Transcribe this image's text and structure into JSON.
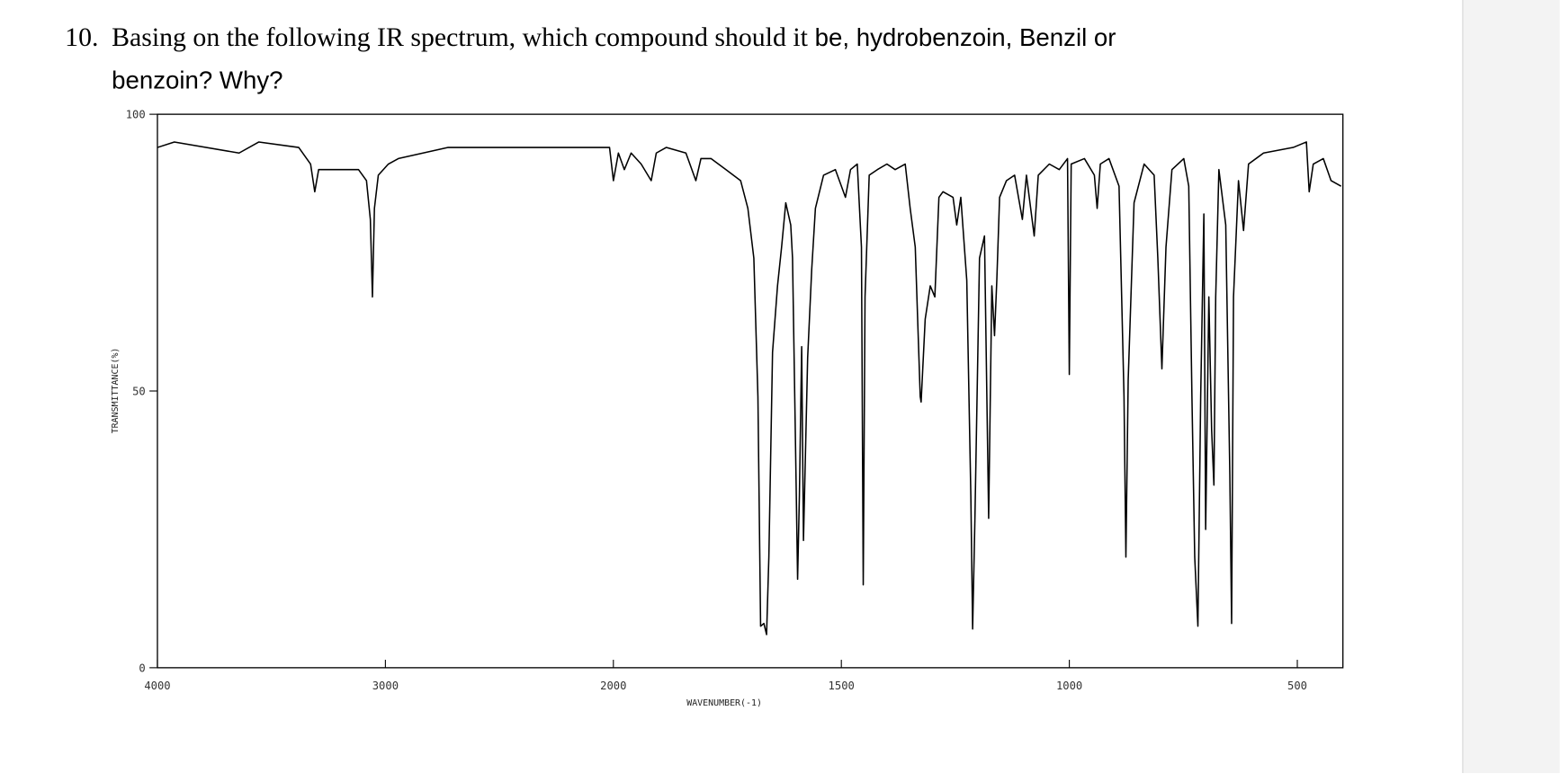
{
  "question": {
    "number": "10.",
    "text_serif": "Basing on the following IR spectrum, which compound should it",
    "text_sans": "be, hydrobenzoin, Benzil or",
    "text_line2": "benzoin? Why?"
  },
  "chart_data": {
    "type": "line",
    "xlabel": "WAVENUMBER(-1)",
    "ylabel": "TRANSMITTANCE(%)",
    "xlim": [
      4000,
      400
    ],
    "xticks": [
      4000,
      3000,
      2000,
      1500,
      1000,
      500
    ],
    "ylim": [
      0,
      100
    ],
    "yticks": [
      0,
      50,
      100
    ],
    "x": [
      4000,
      3926,
      3642,
      3555,
      3380,
      3328,
      3310,
      3293,
      3118,
      3083,
      3066,
      3057,
      3048,
      3031,
      2987,
      2943,
      2725,
      2507,
      2244,
      2070,
      2017,
      2000,
      1989,
      1976,
      1961,
      1939,
      1917,
      1906,
      1884,
      1841,
      1819,
      1808,
      1786,
      1753,
      1721,
      1705,
      1692,
      1683,
      1677,
      1670,
      1664,
      1659,
      1651,
      1640,
      1631,
      1622,
      1611,
      1607,
      1600,
      1596,
      1592,
      1587,
      1583,
      1574,
      1565,
      1557,
      1539,
      1513,
      1491,
      1480,
      1465,
      1456,
      1452,
      1448,
      1439,
      1421,
      1400,
      1382,
      1360,
      1349,
      1338,
      1327,
      1325,
      1316,
      1305,
      1295,
      1286,
      1277,
      1255,
      1247,
      1238,
      1225,
      1216,
      1212,
      1207,
      1197,
      1186,
      1177,
      1170,
      1164,
      1159,
      1153,
      1138,
      1120,
      1103,
      1094,
      1077,
      1068,
      1044,
      1022,
      1004,
      1000,
      996,
      967,
      945,
      939,
      932,
      913,
      891,
      880,
      876,
      871,
      858,
      836,
      814,
      806,
      797,
      788,
      775,
      749,
      738,
      731,
      725,
      718,
      712,
      705,
      701,
      694,
      688,
      683,
      679,
      672,
      657,
      648,
      644,
      640,
      629,
      618,
      607,
      574,
      509,
      480,
      474,
      465,
      443,
      426,
      404
    ],
    "series": [
      {
        "color": "#000000",
        "values": [
          94,
          95,
          93,
          95,
          94,
          91,
          86,
          90,
          90,
          88,
          81,
          67,
          83,
          89,
          91,
          92,
          94,
          94,
          94,
          94,
          94,
          88,
          93,
          90,
          93,
          91,
          88,
          93,
          94,
          93,
          88,
          92,
          92,
          90,
          88,
          83,
          74,
          49,
          7.5,
          8,
          6,
          20,
          57,
          69,
          76,
          84,
          80,
          74,
          38,
          16,
          31,
          58,
          23,
          56,
          72,
          83,
          89,
          90,
          85,
          90,
          91,
          76,
          15,
          67,
          89,
          90,
          91,
          90,
          91,
          83,
          76,
          49,
          48,
          63,
          69,
          67,
          85,
          86,
          85,
          80,
          85,
          70,
          31,
          7,
          27,
          74,
          78,
          27,
          69,
          60,
          70,
          85,
          88,
          89,
          81,
          89,
          78,
          89,
          91,
          90,
          92,
          53,
          91,
          92,
          89,
          83,
          91,
          92,
          87,
          49,
          20,
          52,
          84,
          91,
          89,
          74,
          54,
          76,
          90,
          92,
          87,
          49,
          20,
          7.5,
          49,
          82,
          25,
          67,
          43,
          33,
          67,
          90,
          80,
          35,
          8,
          67,
          88,
          79,
          91,
          93,
          94,
          95,
          86,
          91,
          92,
          88,
          87
        ]
      }
    ]
  }
}
